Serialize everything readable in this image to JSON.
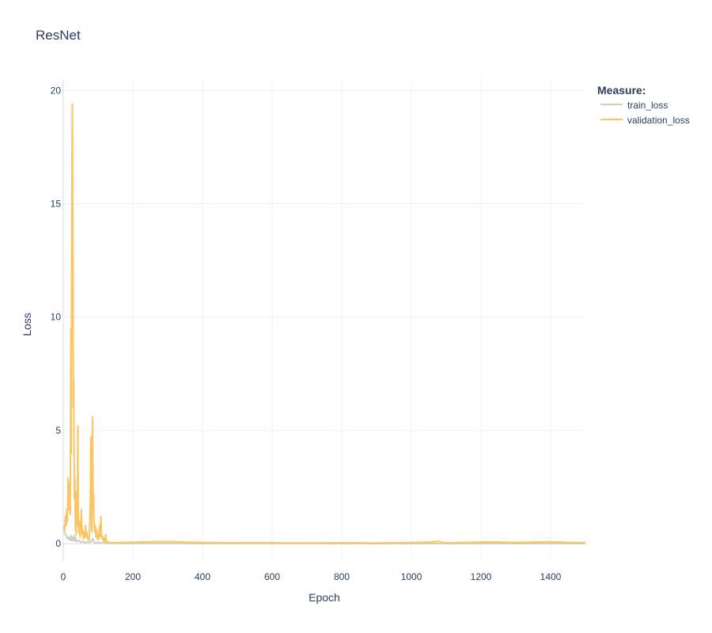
{
  "chart_data": {
    "type": "line",
    "title": "ResNet",
    "xlabel": "Epoch",
    "ylabel": "Loss",
    "xlim": [
      0,
      1500
    ],
    "ylim": [
      -0.8,
      20.5
    ],
    "x_ticks": [
      0,
      200,
      400,
      600,
      800,
      1000,
      1200,
      1400
    ],
    "y_ticks": [
      0,
      5,
      10,
      15,
      20
    ],
    "grid": true,
    "legend": {
      "title": "Measure:",
      "placement": "top-right outside"
    },
    "series": [
      {
        "name": "train_loss",
        "color": "#cfcfbd",
        "points": [
          [
            0,
            0.65
          ],
          [
            2,
            0.55
          ],
          [
            4,
            0.5
          ],
          [
            6,
            0.42
          ],
          [
            8,
            0.35
          ],
          [
            10,
            0.28
          ],
          [
            12,
            0.22
          ],
          [
            14,
            0.3
          ],
          [
            16,
            0.18
          ],
          [
            18,
            0.25
          ],
          [
            20,
            0.15
          ],
          [
            22,
            0.35
          ],
          [
            24,
            0.2
          ],
          [
            26,
            0.12
          ],
          [
            28,
            0.3
          ],
          [
            30,
            0.15
          ],
          [
            32,
            0.38
          ],
          [
            34,
            0.1
          ],
          [
            36,
            0.25
          ],
          [
            38,
            0.12
          ],
          [
            40,
            0.08
          ],
          [
            45,
            0.15
          ],
          [
            50,
            0.07
          ],
          [
            55,
            0.1
          ],
          [
            60,
            0.06
          ],
          [
            65,
            0.05
          ],
          [
            70,
            0.08
          ],
          [
            75,
            0.05
          ],
          [
            80,
            0.1
          ],
          [
            85,
            0.22
          ],
          [
            88,
            0.08
          ],
          [
            90,
            0.05
          ],
          [
            95,
            0.04
          ],
          [
            100,
            0.06
          ],
          [
            105,
            0.03
          ],
          [
            110,
            0.04
          ],
          [
            115,
            0.02
          ],
          [
            120,
            0.03
          ],
          [
            130,
            0.02
          ],
          [
            150,
            0.015
          ],
          [
            200,
            0.01
          ],
          [
            300,
            0.01
          ],
          [
            400,
            0.008
          ],
          [
            600,
            0.006
          ],
          [
            800,
            0.005
          ],
          [
            1000,
            0.005
          ],
          [
            1200,
            0.005
          ],
          [
            1400,
            0.005
          ],
          [
            1500,
            0.005
          ]
        ]
      },
      {
        "name": "validation_loss",
        "color": "#fbc565",
        "points": [
          [
            0,
            0.7
          ],
          [
            2,
            0.75
          ],
          [
            4,
            0.6
          ],
          [
            6,
            1.2
          ],
          [
            8,
            0.8
          ],
          [
            10,
            1.5
          ],
          [
            12,
            1.0
          ],
          [
            14,
            2.9
          ],
          [
            16,
            1.5
          ],
          [
            18,
            2.7
          ],
          [
            20,
            1.3
          ],
          [
            22,
            9.5
          ],
          [
            23,
            4.0
          ],
          [
            24,
            12.0
          ],
          [
            25,
            17.0
          ],
          [
            26,
            19.4
          ],
          [
            27,
            15.0
          ],
          [
            28,
            12.0
          ],
          [
            29,
            6.0
          ],
          [
            30,
            7.3
          ],
          [
            31,
            4.5
          ],
          [
            32,
            2.0
          ],
          [
            33,
            3.0
          ],
          [
            34,
            1.5
          ],
          [
            35,
            0.6
          ],
          [
            36,
            1.0
          ],
          [
            37,
            0.4
          ],
          [
            38,
            2.3
          ],
          [
            40,
            0.8
          ],
          [
            42,
            5.2
          ],
          [
            43,
            1.5
          ],
          [
            44,
            0.5
          ],
          [
            46,
            1.0
          ],
          [
            48,
            0.3
          ],
          [
            50,
            0.8
          ],
          [
            52,
            1.5
          ],
          [
            54,
            0.4
          ],
          [
            56,
            0.6
          ],
          [
            58,
            0.2
          ],
          [
            60,
            0.5
          ],
          [
            62,
            0.3
          ],
          [
            64,
            0.8
          ],
          [
            66,
            0.3
          ],
          [
            68,
            0.5
          ],
          [
            70,
            0.2
          ],
          [
            72,
            0.3
          ],
          [
            74,
            0.15
          ],
          [
            76,
            0.8
          ],
          [
            78,
            2.5
          ],
          [
            79,
            4.7
          ],
          [
            80,
            3.0
          ],
          [
            81,
            1.2
          ],
          [
            82,
            0.5
          ],
          [
            83,
            2.0
          ],
          [
            84,
            5.6
          ],
          [
            85,
            3.5
          ],
          [
            86,
            1.5
          ],
          [
            87,
            2.2
          ],
          [
            88,
            1.0
          ],
          [
            90,
            0.5
          ],
          [
            92,
            0.8
          ],
          [
            94,
            0.3
          ],
          [
            96,
            0.6
          ],
          [
            98,
            0.2
          ],
          [
            100,
            0.4
          ],
          [
            102,
            0.2
          ],
          [
            104,
            0.8
          ],
          [
            106,
            0.3
          ],
          [
            108,
            1.2
          ],
          [
            110,
            0.4
          ],
          [
            112,
            0.2
          ],
          [
            114,
            0.3
          ],
          [
            116,
            0.1
          ],
          [
            118,
            0.25
          ],
          [
            120,
            0.1
          ],
          [
            122,
            0.4
          ],
          [
            124,
            0.05
          ],
          [
            126,
            0.1
          ],
          [
            130,
            0.05
          ],
          [
            140,
            0.04
          ],
          [
            150,
            0.05
          ],
          [
            200,
            0.06
          ],
          [
            250,
            0.08
          ],
          [
            300,
            0.09
          ],
          [
            350,
            0.07
          ],
          [
            400,
            0.05
          ],
          [
            500,
            0.04
          ],
          [
            600,
            0.04
          ],
          [
            700,
            0.03
          ],
          [
            800,
            0.04
          ],
          [
            900,
            0.03
          ],
          [
            1000,
            0.05
          ],
          [
            1050,
            0.07
          ],
          [
            1080,
            0.1
          ],
          [
            1090,
            0.05
          ],
          [
            1100,
            0.04
          ],
          [
            1200,
            0.07
          ],
          [
            1230,
            0.08
          ],
          [
            1300,
            0.05
          ],
          [
            1400,
            0.08
          ],
          [
            1430,
            0.07
          ],
          [
            1450,
            0.05
          ],
          [
            1500,
            0.05
          ]
        ]
      }
    ]
  }
}
